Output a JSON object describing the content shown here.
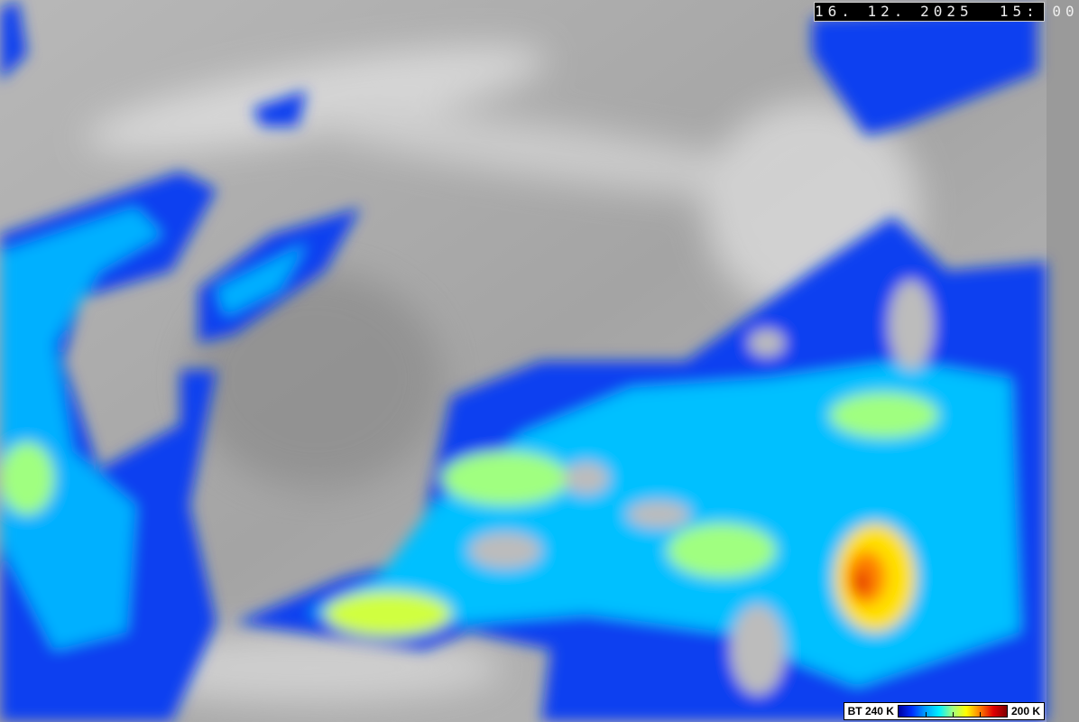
{
  "overlay": {
    "timestamp": "16. 12. 2025  15: 00"
  },
  "legend": {
    "left_label": "BT 240 K",
    "right_label": "200 K",
    "colormap": [
      "#0000a0",
      "#0030ff",
      "#00a0ff",
      "#00f0ff",
      "#a0ff80",
      "#ffff00",
      "#ff8000",
      "#e00000",
      "#800000"
    ]
  }
}
